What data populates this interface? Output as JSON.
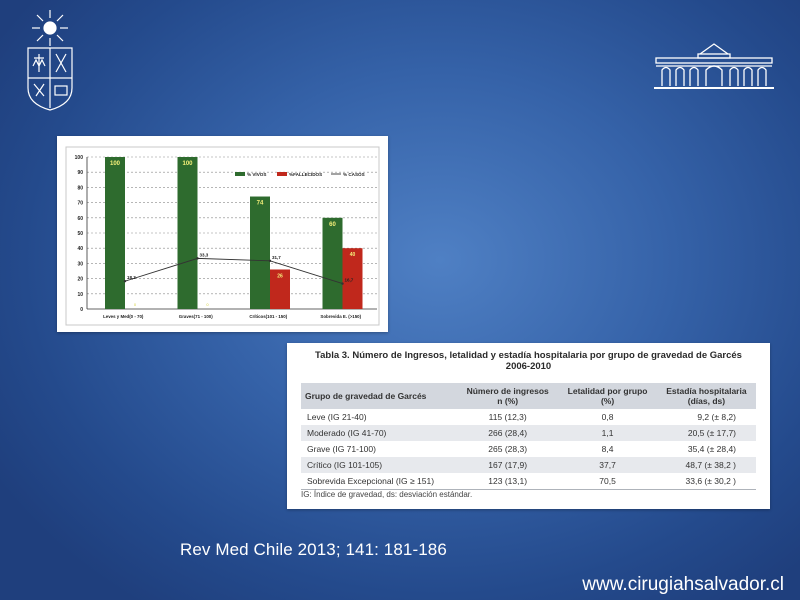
{
  "slide": {
    "citation": "Rev Med Chile 2013; 141: 181-186",
    "website": "www.cirugiahsalvador.cl"
  },
  "logos": {
    "left": "university-crest-icon",
    "right": "hospital-building-icon"
  },
  "colors": {
    "background": "#2f5a9e",
    "vivos": "#2e6b2e",
    "fallecidos": "#c0281c",
    "casos": "#333333",
    "label": "#f5f07a"
  },
  "chart_data": {
    "type": "bar",
    "categories": [
      "Leves y Med(0 - 70)",
      "Graves(71 - 100)",
      "Críticos(101 - 150)",
      "Sobrevida E. (>150)"
    ],
    "series": [
      {
        "name": "% VIVOS",
        "type": "bar",
        "values": [
          100,
          100,
          74,
          60
        ],
        "labels": [
          "100",
          "100",
          "74",
          "60"
        ]
      },
      {
        "name": "%FALLECIDOS",
        "type": "bar",
        "values": [
          0,
          0,
          26,
          40
        ],
        "labels": [
          "0",
          "0",
          "26",
          "40"
        ]
      },
      {
        "name": "% CASOS",
        "type": "line",
        "values": [
          18.3,
          33.3,
          31.7,
          16.7
        ],
        "labels": [
          "18,3",
          "33,3",
          "31,7",
          "16,7"
        ]
      }
    ],
    "yticks": [
      "0",
      "10",
      "20",
      "30",
      "40",
      "50",
      "60",
      "70",
      "80",
      "90",
      "100"
    ],
    "ylim": [
      0,
      100
    ],
    "grid": true,
    "legend_position": "top-right"
  },
  "table": {
    "title_line1": "Tabla 3. Número de Ingresos, letalidad y estadía hospitalaria por grupo de gravedad de Garcés",
    "title_line2": "2006-2010",
    "headers": [
      "Grupo de gravedad de Garcés",
      "Número de ingresos\nn (%)",
      "Letalidad por grupo\n(%)",
      "Estadía hospitalaria\n(días, ds)"
    ],
    "rows": [
      [
        "Leve (IG 21-40)",
        "115 (12,3)",
        "0,8",
        "9,2 (± 8,2)"
      ],
      [
        "Moderado (IG 41-70)",
        "266 (28,4)",
        "1,1",
        "20,5 (± 17,7)"
      ],
      [
        "Grave (IG 71-100)",
        "265 (28,3)",
        "8,4",
        "35,4 (± 28,4)"
      ],
      [
        "Crítico (IG 101-105)",
        "167 (17,9)",
        "37,7",
        "48,7 (± 38,2 )"
      ],
      [
        "Sobrevida Excepcional (IG ≥ 151)",
        "123 (13,1)",
        "70,5",
        "33,6 (± 30,2 )"
      ]
    ],
    "footnote": "IG: Índice de gravedad, ds: desviación estándar."
  }
}
